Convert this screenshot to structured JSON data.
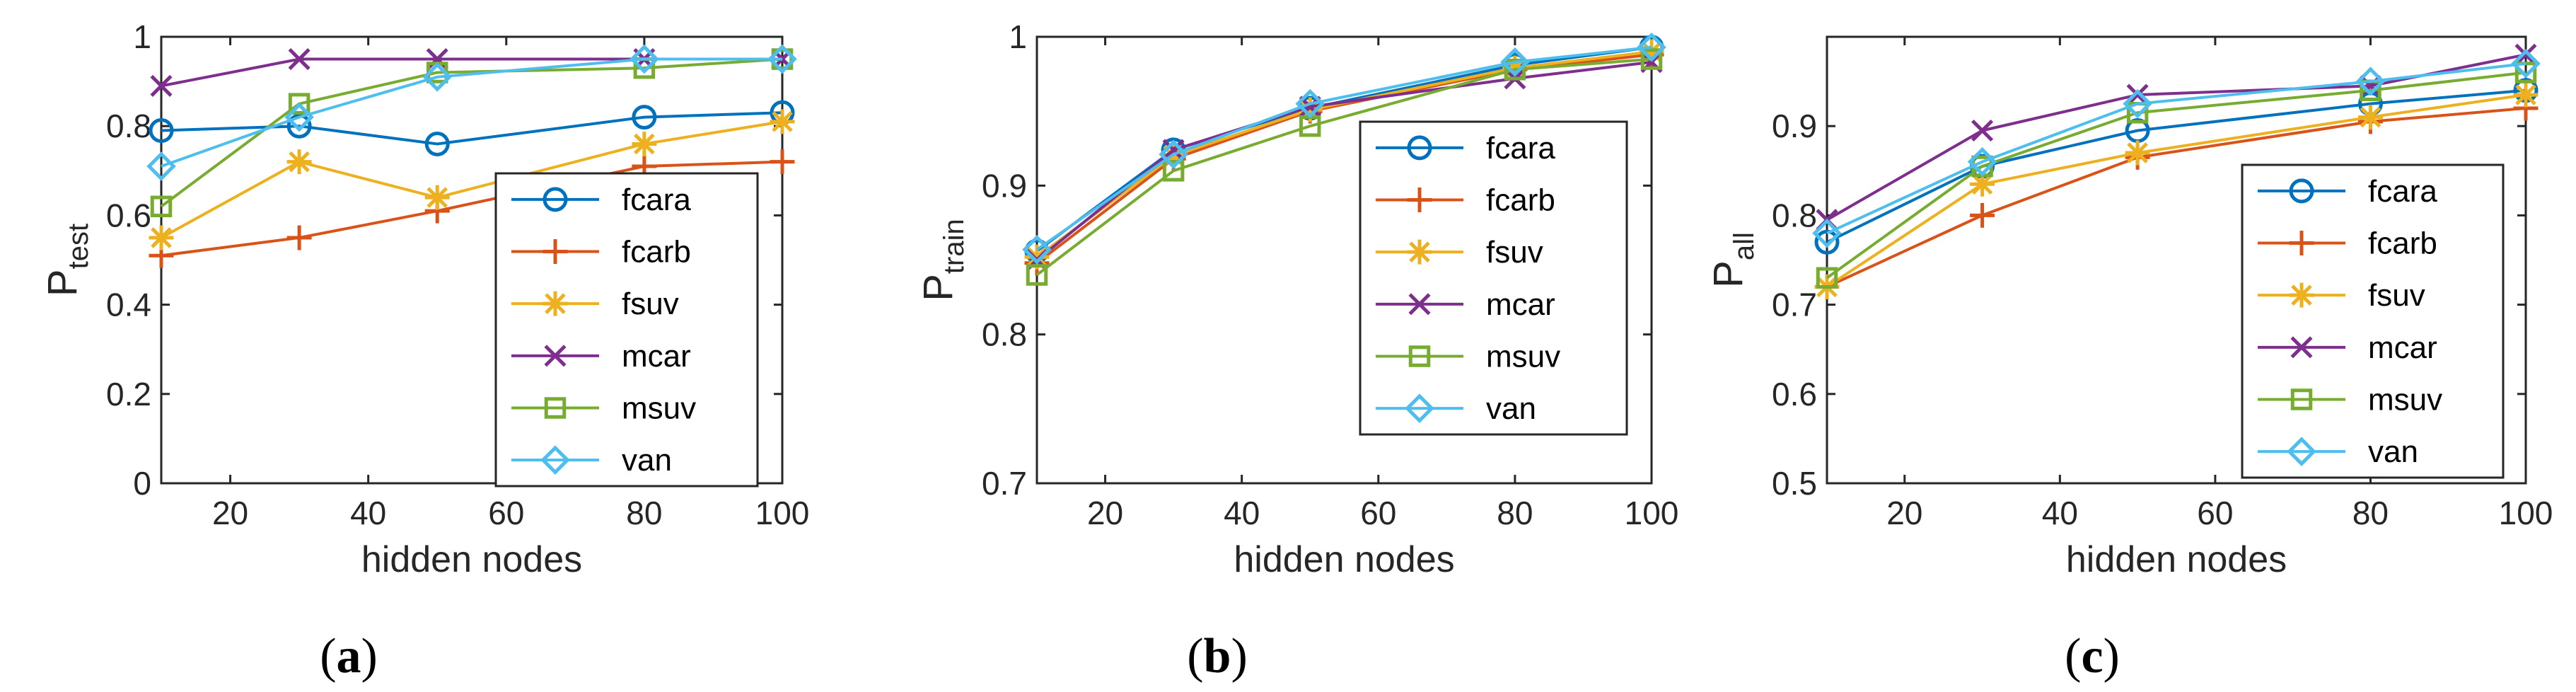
{
  "colors": {
    "fcara": "#0072BD",
    "fcarb": "#D95319",
    "fsuv": "#EDB120",
    "mcar": "#7E2F8E",
    "msuv": "#77AC30",
    "van": "#4DBEEE"
  },
  "chart_data": [
    {
      "type": "line",
      "id": "a",
      "ylabel_main": "P",
      "ylabel_sub": "test",
      "xlabel": "hidden nodes",
      "caption_open": "(",
      "caption_letter": "a",
      "caption_close": ")",
      "x": [
        10,
        30,
        50,
        80,
        100
      ],
      "xlim": [
        10,
        100
      ],
      "ylim": [
        0,
        1
      ],
      "xticks": [
        20,
        40,
        60,
        80,
        100
      ],
      "xtick_labels": [
        "20",
        "40",
        "60",
        "80",
        "100"
      ],
      "yticks": [
        0,
        0.2,
        0.4,
        0.6,
        0.8,
        1
      ],
      "ytick_labels": [
        "0",
        "0.2",
        "0.4",
        "0.6",
        "0.8",
        "1"
      ],
      "legend_location": "bottom-right",
      "series": [
        {
          "name": "fcara",
          "marker": "circle",
          "values": [
            0.79,
            0.8,
            0.76,
            0.82,
            0.83
          ]
        },
        {
          "name": "fcarb",
          "marker": "plus",
          "values": [
            0.51,
            0.55,
            0.61,
            0.71,
            0.72
          ]
        },
        {
          "name": "fsuv",
          "marker": "asterisk",
          "values": [
            0.55,
            0.72,
            0.64,
            0.76,
            0.81
          ]
        },
        {
          "name": "mcar",
          "marker": "x",
          "values": [
            0.89,
            0.95,
            0.95,
            0.95,
            0.95
          ]
        },
        {
          "name": "msuv",
          "marker": "square",
          "values": [
            0.62,
            0.85,
            0.92,
            0.93,
            0.95
          ]
        },
        {
          "name": "van",
          "marker": "diamond",
          "values": [
            0.71,
            0.82,
            0.91,
            0.95,
            0.95
          ]
        }
      ]
    },
    {
      "type": "line",
      "id": "b",
      "ylabel_main": "P",
      "ylabel_sub": "train",
      "xlabel": "hidden nodes",
      "caption_open": "(",
      "caption_letter": "b",
      "caption_close": ")",
      "x": [
        10,
        30,
        50,
        80,
        100
      ],
      "xlim": [
        10,
        100
      ],
      "ylim": [
        0.7,
        1
      ],
      "xticks": [
        20,
        40,
        60,
        80,
        100
      ],
      "xtick_labels": [
        "20",
        "40",
        "60",
        "80",
        "100"
      ],
      "yticks": [
        0.7,
        0.8,
        0.9,
        1
      ],
      "ytick_labels": [
        "0.7",
        "0.8",
        "0.9",
        "1"
      ],
      "legend_location": "bottom-right",
      "series": [
        {
          "name": "fcara",
          "marker": "circle",
          "values": [
            0.856,
            0.924,
            0.952,
            0.981,
            0.993
          ]
        },
        {
          "name": "fcarb",
          "marker": "plus",
          "values": [
            0.848,
            0.918,
            0.95,
            0.978,
            0.988
          ]
        },
        {
          "name": "fsuv",
          "marker": "asterisk",
          "values": [
            0.852,
            0.92,
            0.951,
            0.979,
            0.99
          ]
        },
        {
          "name": "mcar",
          "marker": "x",
          "values": [
            0.85,
            0.924,
            0.953,
            0.972,
            0.983
          ]
        },
        {
          "name": "msuv",
          "marker": "square",
          "values": [
            0.84,
            0.91,
            0.94,
            0.978,
            0.985
          ]
        },
        {
          "name": "van",
          "marker": "diamond",
          "values": [
            0.857,
            0.921,
            0.955,
            0.983,
            0.993
          ]
        }
      ]
    },
    {
      "type": "line",
      "id": "c",
      "ylabel_main": "P",
      "ylabel_sub": "all",
      "xlabel": "hidden nodes",
      "caption_open": "(",
      "caption_letter": "c",
      "caption_close": ")",
      "x": [
        10,
        30,
        50,
        80,
        100
      ],
      "xlim": [
        10,
        100
      ],
      "ylim": [
        0.5,
        1
      ],
      "xticks": [
        20,
        40,
        60,
        80,
        100
      ],
      "xtick_labels": [
        "20",
        "40",
        "60",
        "80",
        "100"
      ],
      "yticks": [
        0.5,
        0.6,
        0.7,
        0.8,
        0.9
      ],
      "ytick_labels": [
        "0.5",
        "0.6",
        "0.7",
        "0.8",
        "0.9"
      ],
      "legend_location": "bottom-right",
      "series": [
        {
          "name": "fcara",
          "marker": "circle",
          "values": [
            0.77,
            0.855,
            0.895,
            0.925,
            0.94
          ]
        },
        {
          "name": "fcarb",
          "marker": "plus",
          "values": [
            0.72,
            0.8,
            0.865,
            0.905,
            0.92
          ]
        },
        {
          "name": "fsuv",
          "marker": "asterisk",
          "values": [
            0.72,
            0.835,
            0.87,
            0.91,
            0.935
          ]
        },
        {
          "name": "mcar",
          "marker": "x",
          "values": [
            0.795,
            0.895,
            0.935,
            0.945,
            0.98
          ]
        },
        {
          "name": "msuv",
          "marker": "square",
          "values": [
            0.73,
            0.855,
            0.915,
            0.94,
            0.96
          ]
        },
        {
          "name": "van",
          "marker": "diamond",
          "values": [
            0.78,
            0.86,
            0.925,
            0.95,
            0.97
          ]
        }
      ]
    }
  ]
}
